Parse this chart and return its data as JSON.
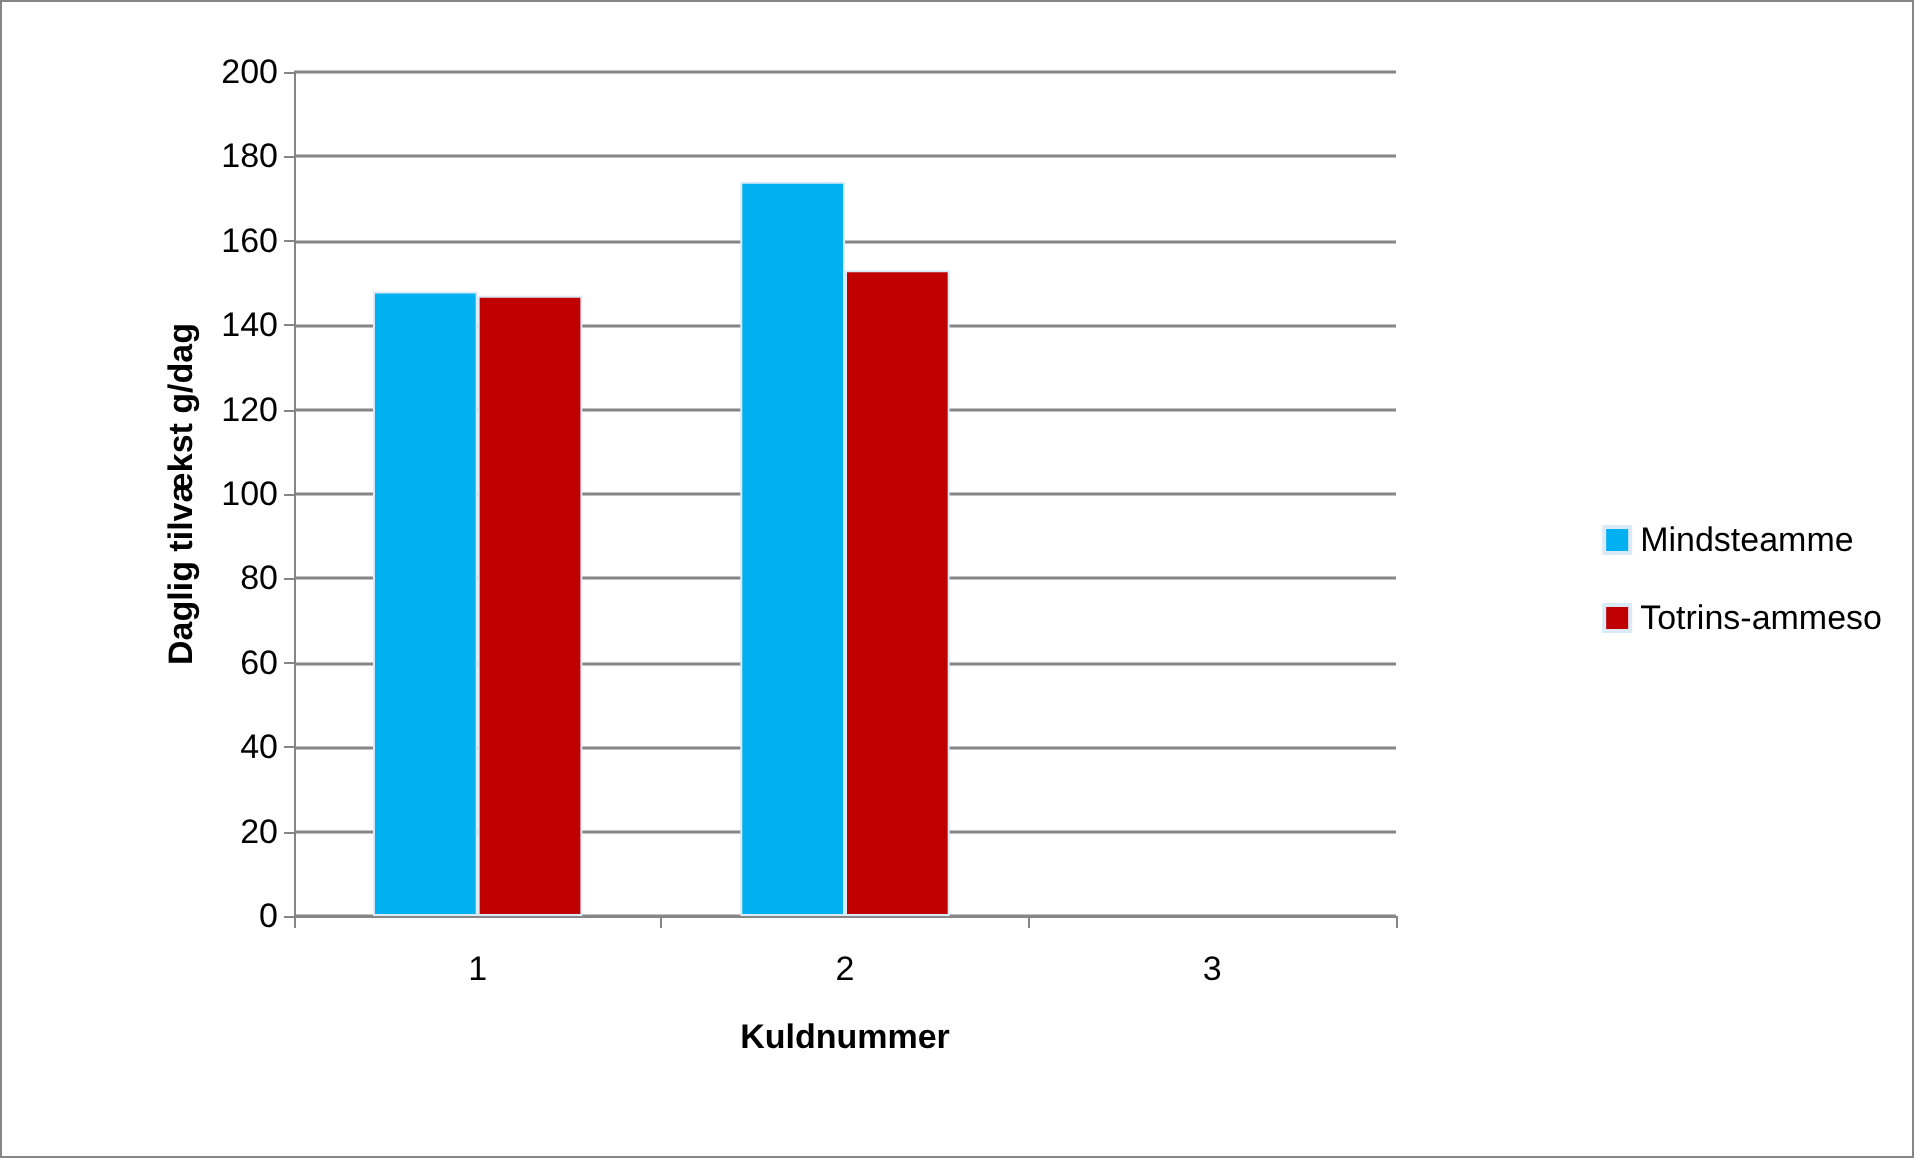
{
  "chart_data": {
    "type": "bar",
    "xlabel": "Kuldnummer",
    "ylabel": "Daglig tilvækst g/dag",
    "categories": [
      "1",
      "2",
      "3"
    ],
    "series": [
      {
        "name": "Mindsteamme",
        "color": "#00b0f0",
        "values": [
          148,
          174,
          null
        ]
      },
      {
        "name": "Totrins-ammeso",
        "color": "#c00000",
        "values": [
          147,
          153,
          null
        ]
      }
    ],
    "ylim": [
      0,
      200
    ],
    "yticks": [
      0,
      20,
      40,
      60,
      80,
      100,
      120,
      140,
      160,
      180,
      200
    ],
    "grid": "y",
    "legend": "right"
  }
}
